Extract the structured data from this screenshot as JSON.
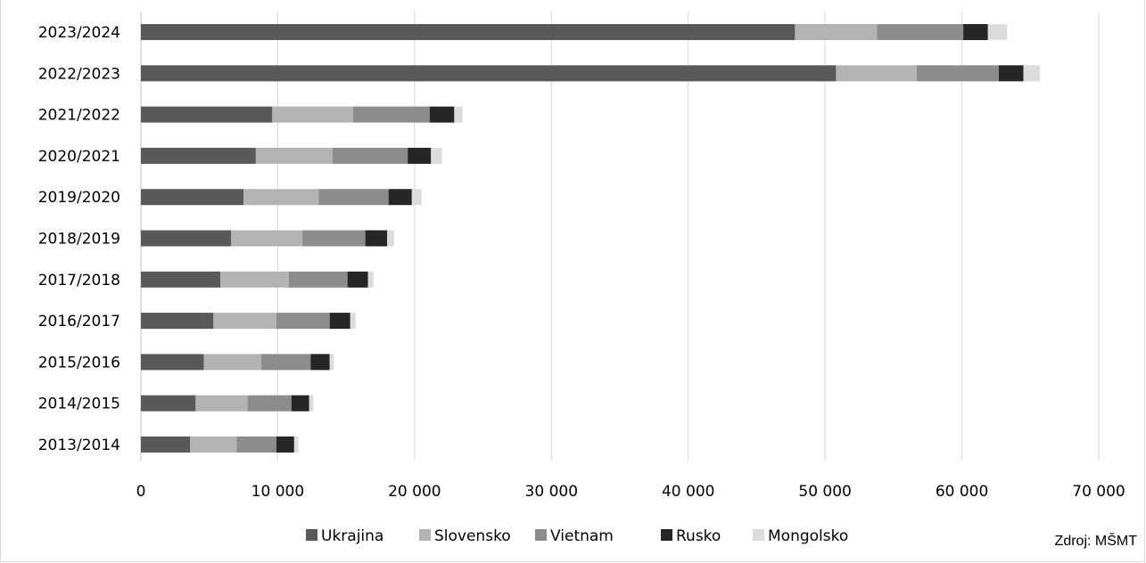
{
  "chart_data": {
    "type": "bar",
    "orientation": "horizontal",
    "stacked": true,
    "categories": [
      "2023/2024",
      "2022/2023",
      "2021/2022",
      "2020/2021",
      "2019/2020",
      "2018/2019",
      "2017/2018",
      "2016/2017",
      "2015/2016",
      "2014/2015",
      "2013/2014"
    ],
    "series": [
      {
        "name": "Ukrajina",
        "color": "#595959",
        "values": [
          47800,
          50800,
          9600,
          8400,
          7500,
          6600,
          5800,
          5300,
          4600,
          4000,
          3600
        ]
      },
      {
        "name": "Slovensko",
        "color": "#b3b3b3",
        "values": [
          6000,
          5900,
          5900,
          5600,
          5500,
          5200,
          5000,
          4600,
          4200,
          3800,
          3400
        ]
      },
      {
        "name": "Vietnam",
        "color": "#8c8c8c",
        "values": [
          6300,
          6000,
          5600,
          5500,
          5100,
          4600,
          4300,
          3900,
          3600,
          3200,
          2900
        ]
      },
      {
        "name": "Rusko",
        "color": "#262626",
        "values": [
          1800,
          1800,
          1800,
          1700,
          1700,
          1600,
          1500,
          1500,
          1400,
          1300,
          1300
        ]
      },
      {
        "name": "Mongolsko",
        "color": "#dcdcdc",
        "values": [
          1400,
          1200,
          600,
          800,
          700,
          500,
          400,
          400,
          300,
          300,
          300
        ]
      }
    ],
    "x_ticks": [
      "0",
      "10 000",
      "20 000",
      "30 000",
      "40 000",
      "50 000",
      "60 000",
      "70 000"
    ],
    "xlim": [
      0,
      70000
    ],
    "title": "",
    "xlabel": "",
    "ylabel": "",
    "grid": "vertical",
    "legend_position": "bottom"
  },
  "source": "Zdroj: MŠMT"
}
